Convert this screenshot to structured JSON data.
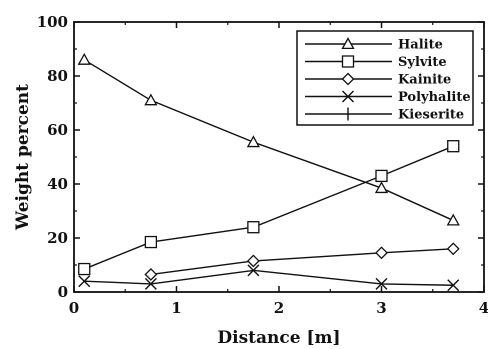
{
  "chart_data": {
    "type": "line",
    "title": "",
    "xlabel": "Distance [m]",
    "ylabel": "Weight percent",
    "xlim": [
      0,
      4
    ],
    "ylim": [
      0,
      100
    ],
    "xticks": [
      "0",
      "1",
      "2",
      "3",
      "4"
    ],
    "yticks": [
      "0",
      "20",
      "40",
      "60",
      "80",
      "100"
    ],
    "grid": false,
    "legend_position": "top-right",
    "series": [
      {
        "name": "Halite",
        "marker": "triangle",
        "points": [
          [
            0.1,
            86
          ],
          [
            0.75,
            71
          ],
          [
            1.75,
            55.5
          ],
          [
            3.0,
            38.5
          ],
          [
            3.7,
            26.5
          ]
        ]
      },
      {
        "name": "Sylvite",
        "marker": "square",
        "points": [
          [
            0.1,
            8.5
          ],
          [
            0.75,
            18.5
          ],
          [
            1.75,
            24
          ],
          [
            3.0,
            43
          ],
          [
            3.7,
            54
          ]
        ]
      },
      {
        "name": "Kainite",
        "marker": "diamond",
        "points": [
          [
            0.75,
            6.5
          ],
          [
            1.75,
            11.5
          ],
          [
            3.0,
            14.5
          ],
          [
            3.7,
            16
          ]
        ]
      },
      {
        "name": "Polyhalite",
        "marker": "x",
        "points": [
          [
            0.1,
            4
          ],
          [
            0.75,
            3
          ],
          [
            1.75,
            8
          ],
          [
            3.0,
            3
          ],
          [
            3.7,
            2.5
          ]
        ]
      },
      {
        "name": "Kieserite",
        "marker": "plus",
        "points": []
      }
    ]
  }
}
